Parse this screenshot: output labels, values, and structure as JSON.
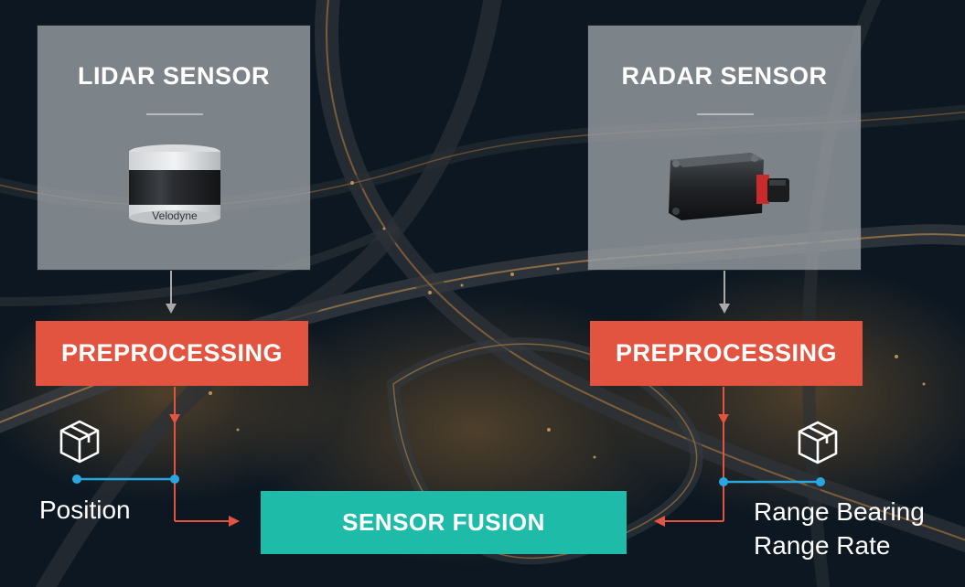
{
  "lidar": {
    "title": "LIDAR SENSOR",
    "preprocessing_label": "PREPROCESSING",
    "device_brand": "Velodyne",
    "output_label": "Position",
    "output_icon": "package-box-icon"
  },
  "radar": {
    "title": "RADAR SENSOR",
    "preprocessing_label": "PREPROCESSING",
    "output_label_line1": "Range Bearing",
    "output_label_line2": "Range Rate",
    "output_icon": "package-box-icon"
  },
  "fusion": {
    "label": "SENSOR FUSION"
  },
  "colors": {
    "sensor_box": "#969ca0",
    "preprocessing": "#e2543f",
    "fusion": "#1ebca8",
    "measurement_line": "#29a8e0",
    "arrow": "#e2543f",
    "connector_gray": "#a9a9a9"
  }
}
